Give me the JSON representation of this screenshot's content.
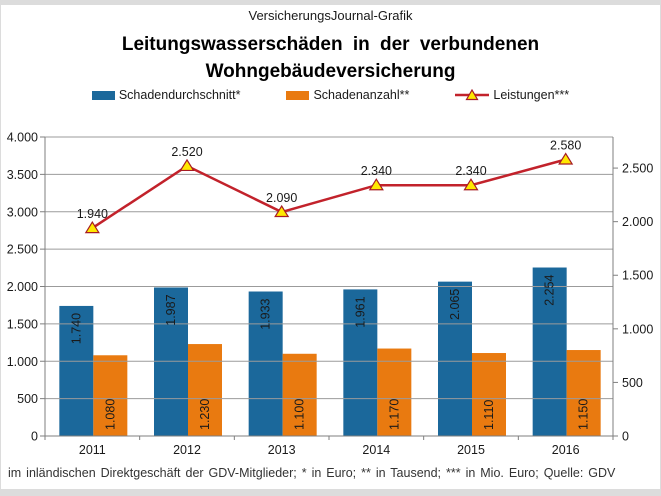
{
  "header": {
    "brand": "VersicherungsJournal-Grafik"
  },
  "title": {
    "line1": "Leitungswasserschäden in der verbundenen",
    "line2": "Wohngebäudeversicherung"
  },
  "legend": [
    {
      "label": "Schadendurchschnitt*",
      "type": "bar",
      "color": "#1b689b"
    },
    {
      "label": "Schadenanzahl**",
      "type": "bar",
      "color": "#e97a10"
    },
    {
      "label": "Leistungen***",
      "type": "line",
      "color": "#c2222b",
      "marker_fill": "#ffe800",
      "marker_stroke": "#a61c24"
    }
  ],
  "footer": {
    "note": "im inländischen Direktgeschäft der GDV-Mitglieder; * in Euro; ** in Tausend; *** in Mio. Euro; Quelle: GDV"
  },
  "chart_data": {
    "type": "bar",
    "subtype": "grouped-bars-with-line",
    "title": "Leitungswasserschäden in der verbundenen Wohngebäudeversicherung",
    "categories": [
      "2011",
      "2012",
      "2013",
      "2014",
      "2015",
      "2016"
    ],
    "series": [
      {
        "name": "Schadendurchschnitt*",
        "type": "bar",
        "axis": "left",
        "color": "#1b689b",
        "values": [
          1740,
          1987,
          1933,
          1961,
          2065,
          2254
        ],
        "labels": [
          "1.740",
          "1.987",
          "1.933",
          "1.961",
          "2.065",
          "2.254"
        ]
      },
      {
        "name": "Schadenanzahl**",
        "type": "bar",
        "axis": "left",
        "color": "#e97a10",
        "values": [
          1080,
          1230,
          1100,
          1170,
          1110,
          1150
        ],
        "labels": [
          "1.080",
          "1.230",
          "1.100",
          "1.170",
          "1.110",
          "1.150"
        ]
      },
      {
        "name": "Leistungen***",
        "type": "line",
        "axis": "right",
        "color": "#c2222b",
        "marker": "triangle",
        "marker_fill": "#ffe800",
        "marker_stroke": "#a61c24",
        "values": [
          1940,
          2520,
          2090,
          2340,
          2340,
          2580
        ],
        "labels": [
          "1.940",
          "2.520",
          "2.090",
          "2.340",
          "2.340",
          "2.580"
        ]
      }
    ],
    "left_axis": {
      "min": 0,
      "max": 4000,
      "step": 500,
      "tick_labels": [
        "0",
        "500",
        "1.000",
        "1.500",
        "2.000",
        "2.500",
        "3.000",
        "3.500",
        "4.000"
      ]
    },
    "right_axis": {
      "min": 0,
      "max": 2500,
      "step": 500,
      "plot_max": 2790,
      "tick_labels": [
        "0",
        "500",
        "1.000",
        "1.500",
        "2.000",
        "2.500"
      ]
    },
    "grid": true,
    "grid_color": "#9b9b9b",
    "axis_color": "#7f7f7f",
    "label_color": "#1a1a1a",
    "legend_position": "top",
    "gridlines_over_bars": true
  }
}
